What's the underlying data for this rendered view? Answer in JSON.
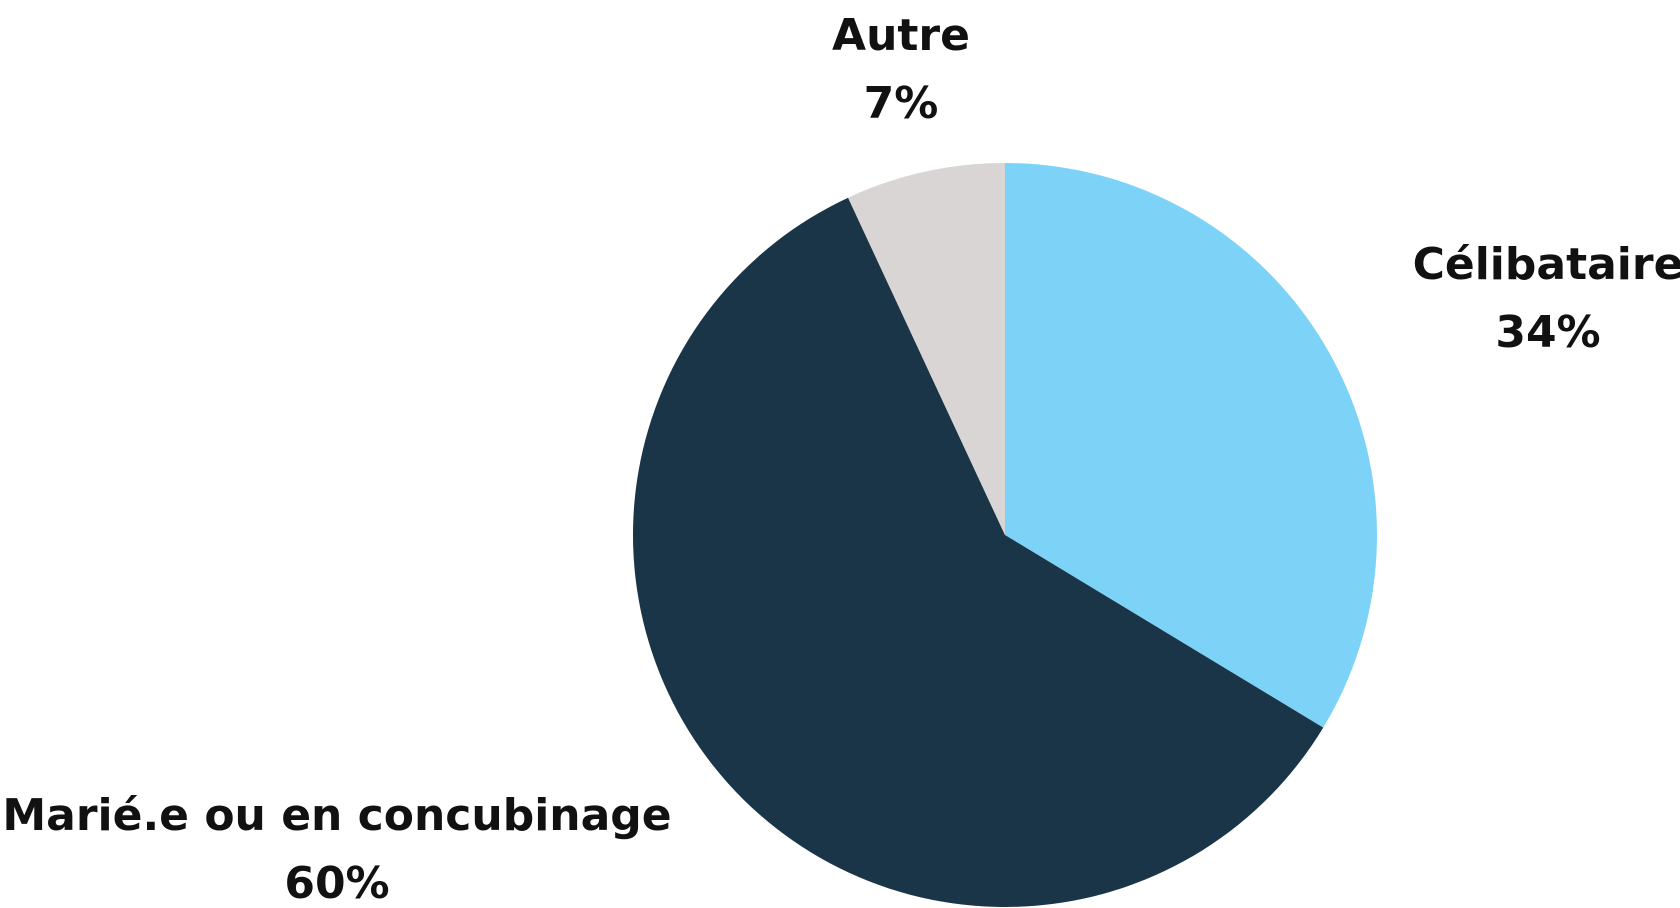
{
  "chart_data": {
    "type": "pie",
    "categories": [
      "Célibataire",
      "Marié.e ou en concubinage",
      "Autre"
    ],
    "values": [
      34,
      60,
      7
    ],
    "value_labels": [
      "34%",
      "60%",
      "7%"
    ],
    "colors": [
      "#7dd3f7",
      "#1a3547",
      "#d9d5d4"
    ]
  }
}
